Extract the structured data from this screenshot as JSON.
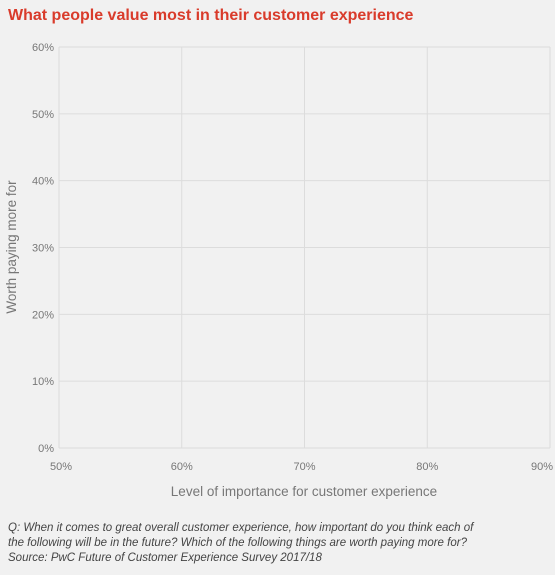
{
  "chart_data": {
    "type": "scatter",
    "title": "What people value most in their customer experience",
    "xlabel": "Level of importance for customer experience",
    "ylabel": "Worth paying more for",
    "xlim": [
      50,
      90
    ],
    "ylim": [
      0,
      60
    ],
    "x_ticks": [
      "50%",
      "60%",
      "70%",
      "80%",
      "90%"
    ],
    "y_ticks": [
      "0%",
      "10%",
      "20%",
      "30%",
      "40%",
      "50%",
      "60%"
    ],
    "grid": true,
    "series": []
  },
  "footnote": {
    "question_line1": "Q: When it comes to great overall customer experience, how important do you think each of",
    "question_line2": "the following will be in the future? Which of the following things are worth paying more for?",
    "source": "Source: PwC Future of Customer Experience Survey 2017/18"
  },
  "colors": {
    "title": "#d93b2b",
    "grid": "#dcdcdc",
    "axis_text": "#777777",
    "background": "#f1f1f1"
  }
}
